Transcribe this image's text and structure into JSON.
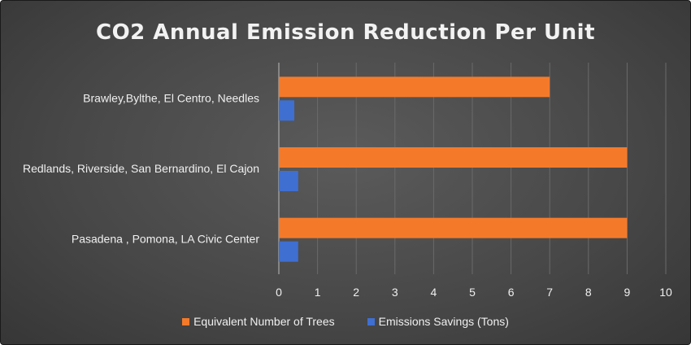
{
  "chart_data": {
    "type": "bar",
    "orientation": "horizontal",
    "title": "CO2 Annual Emission Reduction Per Unit",
    "categories": [
      "Brawley,Bylthe, El Centro, Needles",
      "Redlands, Riverside, San Bernardino, El Cajon",
      "Pasadena , Pomona, LA Civic Center"
    ],
    "series": [
      {
        "name": "Equivalent Number of Trees",
        "color": "#f47a2a",
        "values": [
          7,
          9,
          9
        ]
      },
      {
        "name": "Emissions Savings (Tons)",
        "color": "#3f6fd1",
        "values": [
          0.4,
          0.5,
          0.5
        ]
      }
    ],
    "xlim": [
      0,
      10
    ],
    "xticks": [
      "0",
      "1",
      "2",
      "3",
      "4",
      "5",
      "6",
      "7",
      "8",
      "9",
      "10"
    ],
    "grid": "vertical",
    "legend_position": "bottom",
    "background": "#474747"
  }
}
